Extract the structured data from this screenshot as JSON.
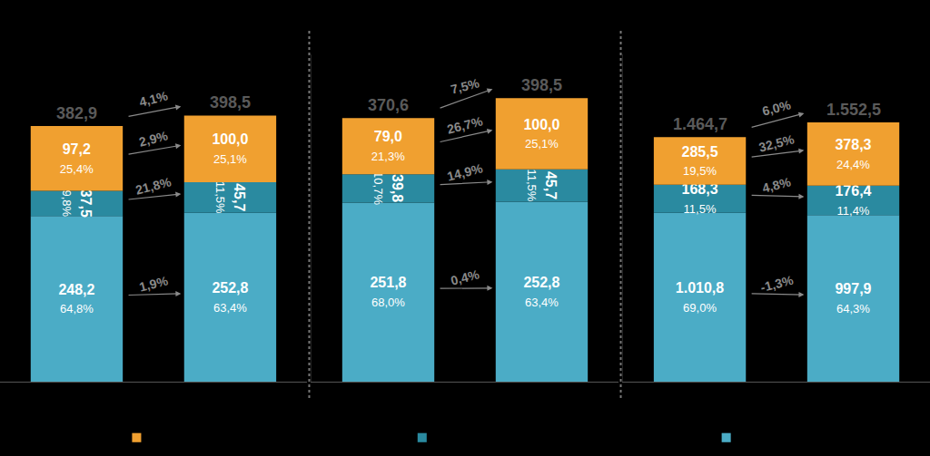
{
  "chart_data": [
    {
      "type": "bar",
      "stacked": true,
      "data_labels": true,
      "tick_labels": false,
      "categories": [
        null,
        null
      ],
      "ylim": [
        0,
        490
      ],
      "series": [
        {
          "color": "#4BACC6",
          "values": [
            248.2,
            252.8
          ],
          "value_labels": [
            "248,2",
            "252,8"
          ],
          "shares": [
            64.8,
            63.4
          ],
          "share_labels": [
            "64,8%",
            "63,4%"
          ],
          "growth": 1.9,
          "growth_label": "1,9%"
        },
        {
          "color": "#2A8AA0",
          "values": [
            37.5,
            45.7
          ],
          "value_labels": [
            "37,5",
            "45,7"
          ],
          "shares": [
            9.8,
            11.5
          ],
          "share_labels": [
            "9,8%",
            "11,5%"
          ],
          "growth": 21.8,
          "growth_label": "21,8%"
        },
        {
          "color": "#F0A030",
          "values": [
            97.2,
            100.0
          ],
          "value_labels": [
            "97,2",
            "100,0"
          ],
          "shares": [
            25.4,
            25.1
          ],
          "share_labels": [
            "25,4%",
            "25,1%"
          ],
          "growth": 2.9,
          "growth_label": "2,9%"
        }
      ],
      "totals": [
        382.9,
        398.5
      ],
      "total_labels": [
        "382,9",
        "398,5"
      ],
      "total_growth": 4.1,
      "total_growth_label": "4,1%"
    },
    {
      "type": "bar",
      "stacked": true,
      "data_labels": true,
      "tick_labels": false,
      "categories": [
        null,
        null
      ],
      "ylim": [
        0,
        460
      ],
      "series": [
        {
          "color": "#4BACC6",
          "values": [
            251.8,
            252.8
          ],
          "value_labels": [
            "251,8",
            "252,8"
          ],
          "shares": [
            68.0,
            63.4
          ],
          "share_labels": [
            "68,0%",
            "63,4%"
          ],
          "growth": 0.4,
          "growth_label": "0,4%"
        },
        {
          "color": "#2A8AA0",
          "values": [
            39.8,
            45.7
          ],
          "value_labels": [
            "39,8",
            "45,7"
          ],
          "shares": [
            10.7,
            11.5
          ],
          "share_labels": [
            "10,7%",
            "11,5%"
          ],
          "growth": 14.9,
          "growth_label": "14,9%"
        },
        {
          "color": "#F0A030",
          "values": [
            79.0,
            100.0
          ],
          "value_labels": [
            "79,0",
            "100,0"
          ],
          "shares": [
            21.3,
            25.1
          ],
          "share_labels": [
            "21,3%",
            "25,1%"
          ],
          "growth": 26.7,
          "growth_label": "26,7%"
        }
      ],
      "totals": [
        370.6,
        398.5
      ],
      "total_labels": [
        "370,6",
        "398,5"
      ],
      "total_growth": 7.5,
      "total_growth_label": "7,5%"
    },
    {
      "type": "bar",
      "stacked": true,
      "data_labels": true,
      "tick_labels": false,
      "categories": [
        null,
        null
      ],
      "ylim": [
        0,
        1960
      ],
      "series": [
        {
          "color": "#4BACC6",
          "values": [
            1010.8,
            997.9
          ],
          "value_labels": [
            "1.010,8",
            "997,9"
          ],
          "shares": [
            69.0,
            64.3
          ],
          "share_labels": [
            "69,0%",
            "64,3%"
          ],
          "growth": -1.3,
          "growth_label": "-1,3%"
        },
        {
          "color": "#2A8AA0",
          "values": [
            168.3,
            176.4
          ],
          "value_labels": [
            "168,3",
            "176,4"
          ],
          "shares": [
            11.5,
            11.4
          ],
          "share_labels": [
            "11,5%",
            "11,4%"
          ],
          "growth": 4.8,
          "growth_label": "4,8%"
        },
        {
          "color": "#F0A030",
          "values": [
            285.5,
            378.3
          ],
          "value_labels": [
            "285,5",
            "378,3"
          ],
          "shares": [
            19.5,
            24.4
          ],
          "share_labels": [
            "19,5%",
            "24,4%"
          ],
          "growth": 32.5,
          "growth_label": "32,5%"
        }
      ],
      "totals": [
        1464.7,
        1552.5
      ],
      "total_labels": [
        "1.464,7",
        "1.552,5"
      ],
      "total_growth": 6.0,
      "total_growth_label": "6,0%"
    }
  ]
}
